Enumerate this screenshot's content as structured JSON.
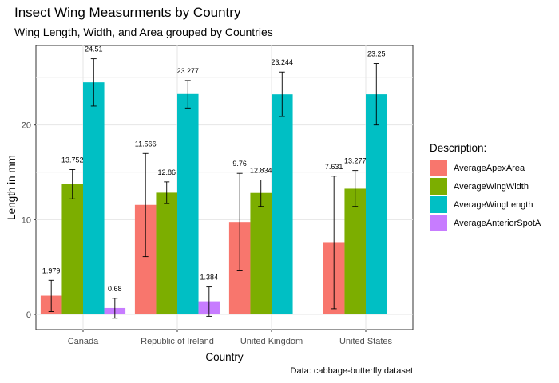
{
  "chart_data": {
    "type": "bar",
    "title": "Insect Wing Measurments by Country",
    "subtitle": "Wing Length, Width, and Area grouped by Countries",
    "caption": "Data: cabbage-butterfly dataset",
    "xlabel": "Country",
    "ylabel": "Length in mm",
    "categories": [
      "Canada",
      "Republic of Ireland",
      "United Kingdom",
      "United States"
    ],
    "yticks": [
      "0",
      "10",
      "20"
    ],
    "ylim": [
      -1.6,
      28.4
    ],
    "grid": true,
    "legend": {
      "title": "Description:",
      "position": "right"
    },
    "series": [
      {
        "name": "AverageApexArea",
        "color": "#F8766D",
        "values": [
          1.979,
          11.566,
          9.76,
          7.631
        ],
        "labels": [
          "1.979",
          "11.566",
          "9.76",
          "7.631"
        ],
        "err_low": [
          0.3,
          6.1,
          4.6,
          0.6
        ],
        "err_high": [
          3.6,
          17.0,
          14.9,
          14.6
        ]
      },
      {
        "name": "AverageWingWidth",
        "color": "#7CAE00",
        "values": [
          13.752,
          12.86,
          12.834,
          13.277
        ],
        "labels": [
          "13.752",
          "12.86",
          "12.834",
          "13.277"
        ],
        "err_low": [
          12.2,
          11.7,
          11.4,
          11.4
        ],
        "err_high": [
          15.3,
          14.0,
          14.2,
          15.2
        ]
      },
      {
        "name": "AverageWingLength",
        "color": "#00BFC4",
        "values": [
          24.51,
          23.277,
          23.244,
          23.25
        ],
        "labels": [
          "24.51",
          "23.277",
          "23.244",
          "23.25"
        ],
        "err_low": [
          22.0,
          21.8,
          20.9,
          20.0
        ],
        "err_high": [
          27.0,
          24.7,
          25.6,
          26.5
        ]
      },
      {
        "name": "AverageAnteriorSpotA",
        "color": "#C77CFF",
        "values": [
          0.68,
          1.384,
          null,
          null
        ],
        "labels": [
          "0.68",
          "1.384",
          "",
          ""
        ],
        "err_low": [
          -0.4,
          -0.2,
          null,
          null
        ],
        "err_high": [
          1.7,
          2.9,
          null,
          null
        ]
      }
    ]
  }
}
